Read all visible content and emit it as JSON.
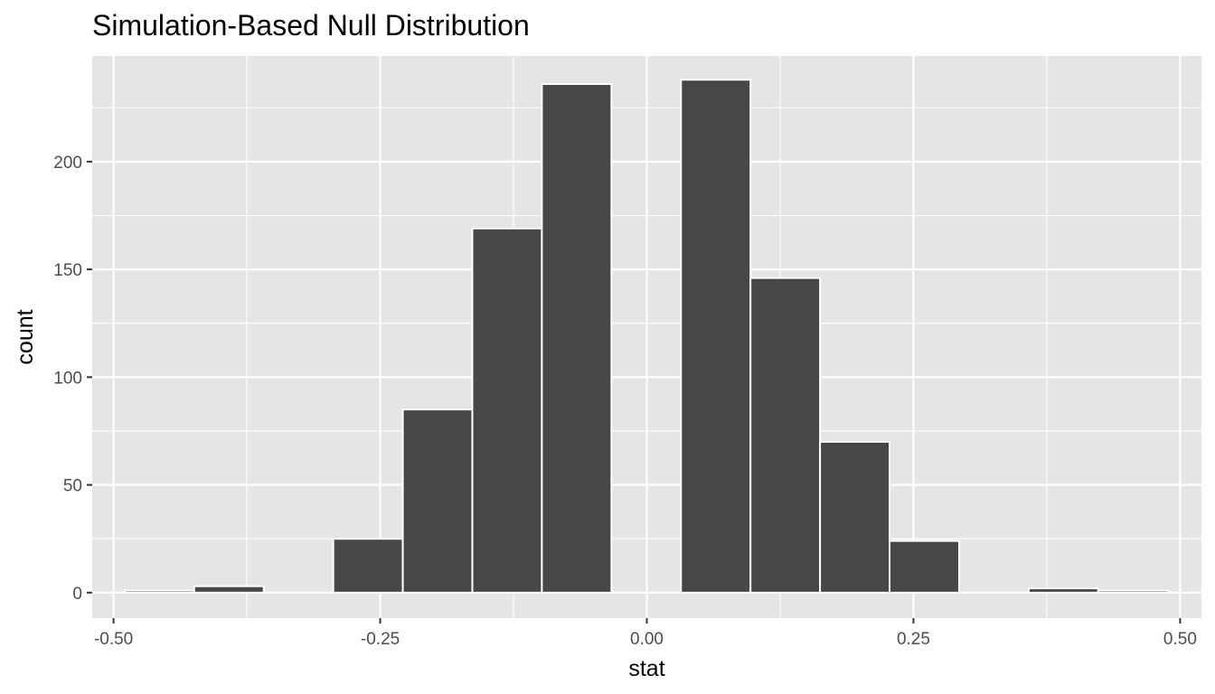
{
  "chart_data": {
    "type": "bar",
    "title": "Simulation-Based Null Distribution",
    "xlabel": "stat",
    "ylabel": "count",
    "xlim": [
      -0.52,
      0.52
    ],
    "ylim": [
      -11.8,
      249
    ],
    "x_ticks": [
      {
        "value": -0.5,
        "label": "-0.50"
      },
      {
        "value": -0.25,
        "label": "-0.25"
      },
      {
        "value": 0.0,
        "label": "0.00"
      },
      {
        "value": 0.25,
        "label": "0.25"
      },
      {
        "value": 0.5,
        "label": "0.50"
      }
    ],
    "y_ticks": [
      {
        "value": 0,
        "label": "0"
      },
      {
        "value": 50,
        "label": "50"
      },
      {
        "value": 100,
        "label": "100"
      },
      {
        "value": 150,
        "label": "150"
      },
      {
        "value": 200,
        "label": "200"
      }
    ],
    "grid": true,
    "legend": "none",
    "bin_width": 0.0652,
    "bins": [
      {
        "x": -0.457,
        "count": 1
      },
      {
        "x": -0.3918,
        "count": 3
      },
      {
        "x": -0.3266,
        "count": 0
      },
      {
        "x": -0.2614,
        "count": 25
      },
      {
        "x": -0.1962,
        "count": 85
      },
      {
        "x": -0.131,
        "count": 169
      },
      {
        "x": -0.0658,
        "count": 236
      },
      {
        "x": -0.0006,
        "count": 0
      },
      {
        "x": 0.0646,
        "count": 238
      },
      {
        "x": 0.1298,
        "count": 146
      },
      {
        "x": 0.195,
        "count": 70
      },
      {
        "x": 0.2602,
        "count": 24
      },
      {
        "x": 0.3254,
        "count": 0
      },
      {
        "x": 0.3906,
        "count": 2
      },
      {
        "x": 0.4558,
        "count": 1
      }
    ],
    "colors": {
      "bar_fill": "#474747",
      "bar_outline": "#ffffff",
      "panel": "#e5e5e5",
      "grid": "#ffffff"
    }
  }
}
